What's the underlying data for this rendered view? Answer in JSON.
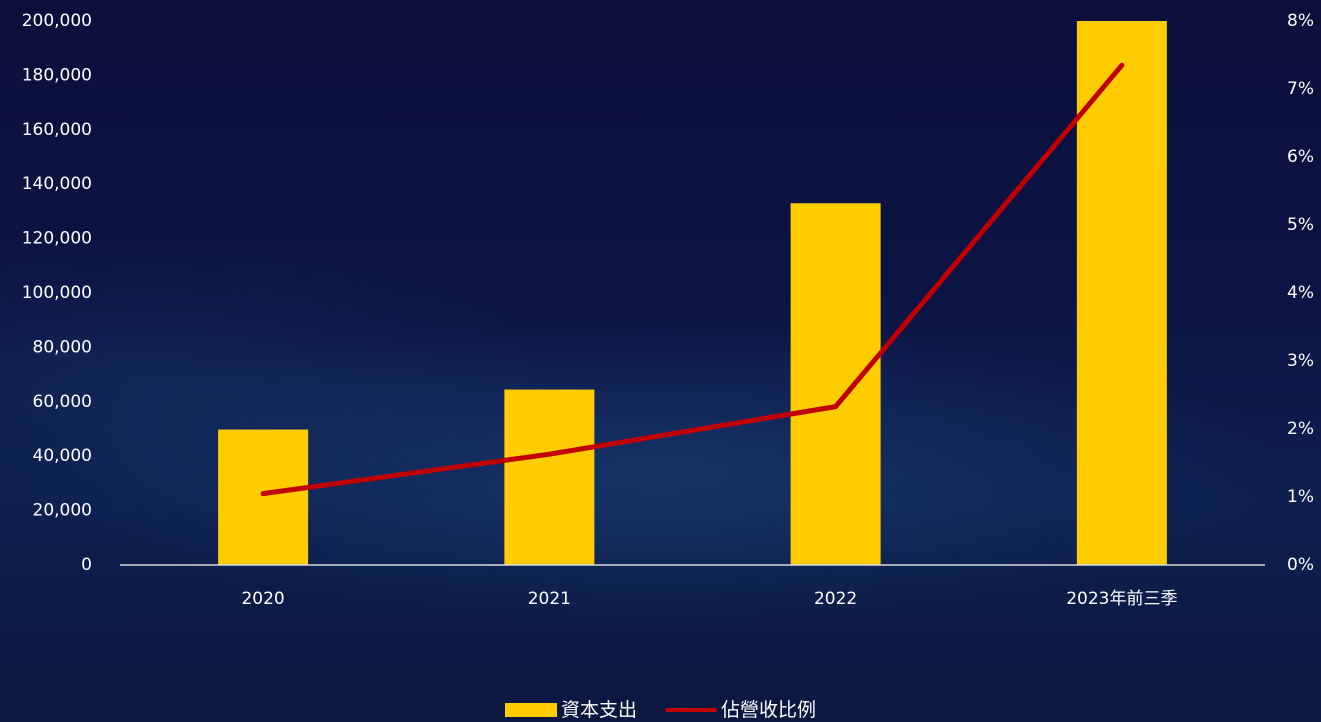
{
  "chart_data": {
    "type": "bar",
    "categories": [
      "2020",
      "2021",
      "2022",
      "2023年前三季"
    ],
    "series": [
      {
        "name": "資本支出",
        "type": "bar",
        "axis": "left",
        "color": "#ffcc00",
        "values": [
          49800,
          64500,
          133000,
          200000
        ]
      },
      {
        "name": "佔營收比例",
        "type": "line",
        "axis": "right",
        "color": "#c00000",
        "values": [
          1.05,
          1.63,
          2.33,
          7.35
        ]
      }
    ],
    "y_left": {
      "range": [
        0,
        200000
      ],
      "ticks": [
        "0",
        "20,000",
        "40,000",
        "60,000",
        "80,000",
        "100,000",
        "120,000",
        "140,000",
        "160,000",
        "180,000",
        "200,000"
      ]
    },
    "y_right": {
      "range": [
        0,
        8
      ],
      "ticks": [
        "0%",
        "1%",
        "2%",
        "3%",
        "4%",
        "5%",
        "6%",
        "7%",
        "8%"
      ]
    },
    "grid": false,
    "legend_position": "bottom"
  }
}
